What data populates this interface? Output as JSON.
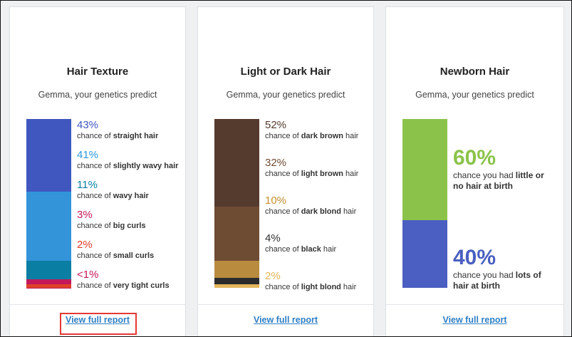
{
  "cards": [
    {
      "title": "Hair Texture",
      "subtitle": "Gemma, your genetics predict",
      "link": "View full report",
      "highlighted": true,
      "items": [
        {
          "label": "43%",
          "value": 43,
          "color": "#4057c0",
          "bar_color": "#4057c0",
          "prefix": "chance of",
          "bold": "straight hair"
        },
        {
          "label": "41%",
          "value": 41,
          "color": "#2e98d9",
          "bar_color": "#3494da",
          "prefix": "chance of",
          "bold": "slightly wavy hair"
        },
        {
          "label": "11%",
          "value": 11,
          "color": "#0b7fa3",
          "bar_color": "#0b7fa3",
          "prefix": "chance of",
          "bold": "wavy hair"
        },
        {
          "label": "3%",
          "value": 3,
          "color": "#c2185b",
          "bar_color": "#c2185b",
          "prefix": "chance of",
          "bold": "big curls"
        },
        {
          "label": "2%",
          "value": 2,
          "color": "#e0402a",
          "bar_color": "#e0402a",
          "prefix": "chance of",
          "bold": "small curls"
        },
        {
          "label": "<1%",
          "value": 0.5,
          "color": "#c2185b",
          "bar_color": "#c2185b",
          "prefix": "chance of",
          "bold": "very tight curls"
        }
      ]
    },
    {
      "title": "Light or Dark Hair",
      "subtitle": "Gemma, your genetics predict",
      "link": "View full report",
      "highlighted": false,
      "items": [
        {
          "label": "52%",
          "value": 52,
          "color": "#553a2e",
          "bar_color": "#553a2e",
          "prefix": "chance of",
          "bold": "dark brown",
          "suffix": "hair"
        },
        {
          "label": "32%",
          "value": 32,
          "color": "#6e4b33",
          "bar_color": "#6e4b33",
          "prefix": "chance of",
          "bold": "light brown",
          "suffix": "hair"
        },
        {
          "label": "10%",
          "value": 10,
          "color": "#c48d30",
          "bar_color": "#b98b3f",
          "prefix": "chance of",
          "bold": "dark blond",
          "suffix": "hair"
        },
        {
          "label": "4%",
          "value": 4,
          "color": "#333333",
          "bar_color": "#2b2b2b",
          "prefix": "chance of",
          "bold": "black",
          "suffix": "hair"
        },
        {
          "label": "2%",
          "value": 2,
          "color": "#e5b55c",
          "bar_color": "#e5b55c",
          "prefix": "chance of",
          "bold": "light blond",
          "suffix": "hair"
        }
      ]
    },
    {
      "title": "Newborn Hair",
      "subtitle": "Gemma, your genetics predict",
      "link": "View full report",
      "highlighted": false,
      "items": [
        {
          "label": "60%",
          "value": 60,
          "color": "#8bc34a",
          "bar_color": "#8bc34a",
          "prefix": "chance you had",
          "bold": "little or no hair at birth"
        },
        {
          "label": "40%",
          "value": 40,
          "color": "#4a5fc1",
          "bar_color": "#4a5fc1",
          "prefix": "chance you had",
          "bold": "lots of hair at birth"
        }
      ]
    }
  ]
}
